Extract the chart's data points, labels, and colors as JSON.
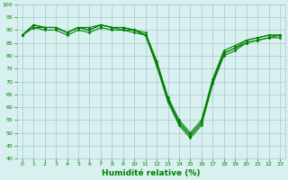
{
  "x": [
    0,
    1,
    2,
    3,
    4,
    5,
    6,
    7,
    8,
    9,
    10,
    11,
    12,
    13,
    14,
    15,
    16,
    17,
    18,
    19,
    20,
    21,
    22,
    23
  ],
  "curves": [
    [
      88,
      92,
      91,
      91,
      89,
      91,
      90,
      92,
      91,
      91,
      90,
      88,
      77,
      63,
      54,
      49,
      54,
      70,
      81,
      83,
      86,
      87,
      88,
      88
    ],
    [
      88,
      92,
      91,
      91,
      89,
      91,
      91,
      92,
      91,
      91,
      90,
      89,
      78,
      64,
      55,
      50,
      55,
      71,
      82,
      84,
      86,
      87,
      88,
      88
    ],
    [
      88,
      91,
      90,
      90,
      88,
      90,
      89,
      91,
      90,
      90,
      89,
      88,
      76,
      62,
      53,
      48,
      53,
      69,
      80,
      82,
      85,
      86,
      87,
      87
    ],
    [
      88,
      91,
      91,
      91,
      89,
      91,
      90,
      92,
      91,
      90,
      90,
      88,
      77,
      63,
      54,
      49,
      54,
      70,
      81,
      83,
      85,
      86,
      87,
      88
    ]
  ],
  "line_color": "#008000",
  "marker": "D",
  "markersize": 1.5,
  "linewidth": 0.8,
  "background_color": "#d8f0f0",
  "grid_color": "#a8c8c8",
  "text_color": "#008000",
  "xlabel": "Humidité relative (%)",
  "ylim": [
    40,
    100
  ],
  "xlim": [
    -0.5,
    23.5
  ],
  "yticks": [
    40,
    45,
    50,
    55,
    60,
    65,
    70,
    75,
    80,
    85,
    90,
    95,
    100
  ],
  "xticks": [
    0,
    1,
    2,
    3,
    4,
    5,
    6,
    7,
    8,
    9,
    10,
    11,
    12,
    13,
    14,
    15,
    16,
    17,
    18,
    19,
    20,
    21,
    22,
    23
  ],
  "tick_fontsize": 4.5,
  "xlabel_fontsize": 6.5,
  "ylabel_fontsize": 4.5
}
